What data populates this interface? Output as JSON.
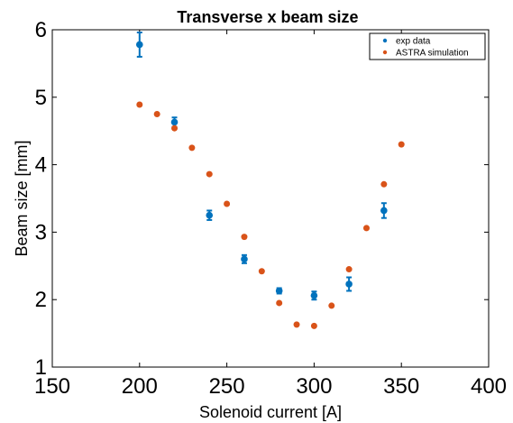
{
  "chart_data": {
    "type": "scatter",
    "title": "Transverse x beam size",
    "xlabel": "Solenoid current [A]",
    "ylabel": "Beam size [mm]",
    "xlim": [
      150,
      400
    ],
    "ylim": [
      1,
      6
    ],
    "xticks": [
      150,
      200,
      250,
      300,
      350,
      400
    ],
    "yticks": [
      1,
      2,
      3,
      4,
      5,
      6
    ],
    "grid": false,
    "legend_position": "top-right",
    "series": [
      {
        "name": "exp data",
        "color": "#0072bd",
        "marker": "circle",
        "error_bars": true,
        "points": [
          {
            "x": 200,
            "y": 5.78,
            "err": 0.18
          },
          {
            "x": 220,
            "y": 4.63,
            "err": 0.07
          },
          {
            "x": 240,
            "y": 3.25,
            "err": 0.07
          },
          {
            "x": 260,
            "y": 2.6,
            "err": 0.06
          },
          {
            "x": 280,
            "y": 2.13,
            "err": 0.04
          },
          {
            "x": 300,
            "y": 2.06,
            "err": 0.06
          },
          {
            "x": 320,
            "y": 2.23,
            "err": 0.1
          },
          {
            "x": 340,
            "y": 3.32,
            "err": 0.11
          }
        ]
      },
      {
        "name": "ASTRA simulation",
        "color": "#d95319",
        "marker": "circle",
        "error_bars": false,
        "points": [
          {
            "x": 200,
            "y": 4.89
          },
          {
            "x": 210,
            "y": 4.75
          },
          {
            "x": 220,
            "y": 4.54
          },
          {
            "x": 230,
            "y": 4.25
          },
          {
            "x": 240,
            "y": 3.86
          },
          {
            "x": 250,
            "y": 3.42
          },
          {
            "x": 260,
            "y": 2.93
          },
          {
            "x": 270,
            "y": 2.42
          },
          {
            "x": 280,
            "y": 1.95
          },
          {
            "x": 290,
            "y": 1.63
          },
          {
            "x": 300,
            "y": 1.61
          },
          {
            "x": 310,
            "y": 1.91
          },
          {
            "x": 320,
            "y": 2.45
          },
          {
            "x": 330,
            "y": 3.06
          },
          {
            "x": 340,
            "y": 3.71
          },
          {
            "x": 350,
            "y": 4.3
          }
        ]
      }
    ]
  }
}
